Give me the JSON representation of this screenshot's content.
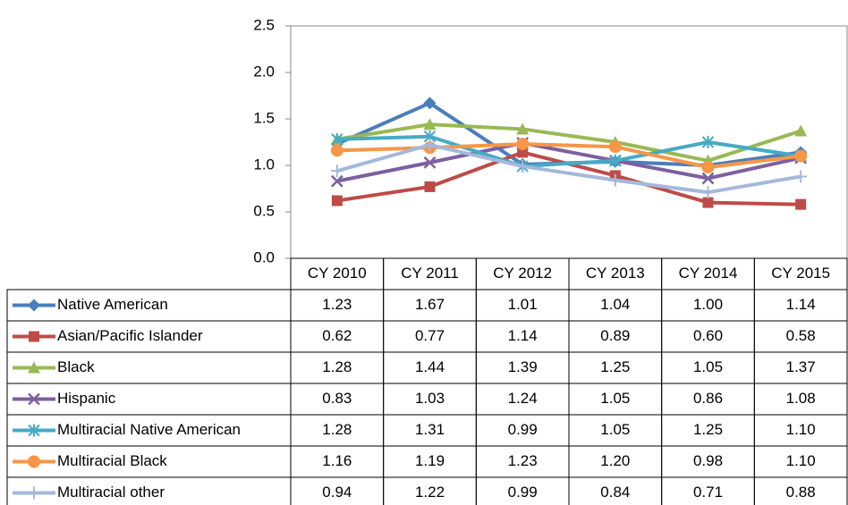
{
  "chart_data": {
    "type": "line",
    "categories": [
      "CY 2010",
      "CY 2011",
      "CY 2012",
      "CY 2013",
      "CY 2014",
      "CY 2015"
    ],
    "ylim": [
      0,
      2.5
    ],
    "yticks": [
      {
        "value": 0,
        "label": "0.0"
      },
      0.5,
      {
        "value": 1,
        "label": "1.0"
      },
      1.5,
      {
        "value": 2,
        "label": "2.0"
      },
      2.5
    ],
    "series": [
      {
        "name": "Native American",
        "color": "#4a7ebb",
        "marker": "diamond",
        "values": [
          1.23,
          1.67,
          1.01,
          1.04,
          1.0,
          1.14
        ],
        "value_labels": [
          "1.23",
          "1.67",
          "1.01",
          "1.04",
          "1.00",
          "1.14"
        ]
      },
      {
        "name": "Asian/Pacific Islander",
        "color": "#be4b48",
        "marker": "square",
        "values": [
          0.62,
          0.77,
          1.14,
          0.89,
          0.6,
          0.58
        ],
        "value_labels": [
          "0.62",
          "0.77",
          "1.14",
          "0.89",
          "0.60",
          "0.58"
        ]
      },
      {
        "name": "Black",
        "color": "#98b954",
        "marker": "triangle",
        "values": [
          1.28,
          1.44,
          1.39,
          1.25,
          1.05,
          1.37
        ],
        "value_labels": [
          "1.28",
          "1.44",
          "1.39",
          "1.25",
          "1.05",
          "1.37"
        ]
      },
      {
        "name": "Hispanic",
        "color": "#7d60a0",
        "marker": "x",
        "values": [
          0.83,
          1.03,
          1.24,
          1.05,
          0.86,
          1.08
        ],
        "value_labels": [
          "0.83",
          "1.03",
          "1.24",
          "1.05",
          "0.86",
          "1.08"
        ]
      },
      {
        "name": "Multiracial Native American",
        "color": "#46aac5",
        "marker": "asterisk",
        "values": [
          1.28,
          1.31,
          0.99,
          1.05,
          1.25,
          1.1
        ],
        "value_labels": [
          "1.28",
          "1.31",
          "0.99",
          "1.05",
          "1.25",
          "1.10"
        ]
      },
      {
        "name": "Multiracial Black",
        "color": "#f79646",
        "marker": "circle",
        "values": [
          1.16,
          1.19,
          1.23,
          1.2,
          0.98,
          1.1
        ],
        "value_labels": [
          "1.16",
          "1.19",
          "1.23",
          "1.20",
          "0.98",
          "1.10"
        ]
      },
      {
        "name": "Multiracial other",
        "color": "#a5b8db",
        "marker": "plus",
        "values": [
          0.94,
          1.22,
          0.99,
          0.84,
          0.71,
          0.88
        ],
        "value_labels": [
          "0.94",
          "1.22",
          "0.99",
          "0.84",
          "0.71",
          "0.88"
        ]
      }
    ]
  }
}
